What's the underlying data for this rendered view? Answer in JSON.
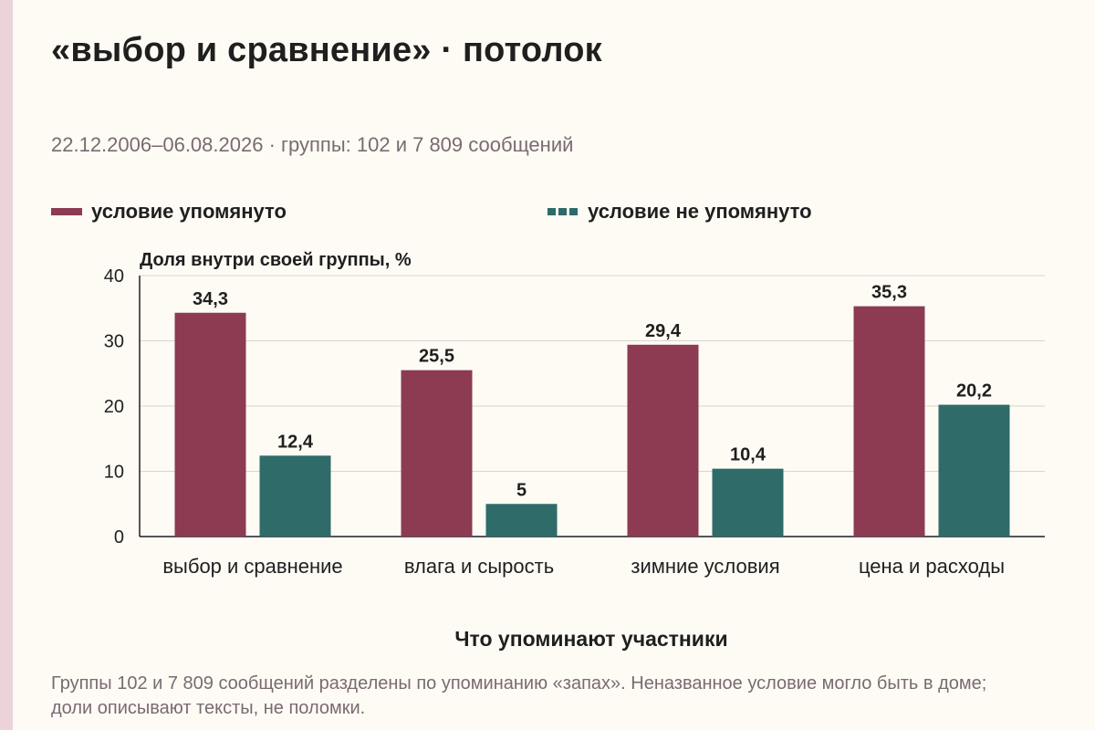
{
  "title": "«выбор и сравнение» · потолок",
  "subtitle": "22.12.2006–06.08.2026 · группы: 102 и 7 809 сообщений",
  "caption": "Группы 102 и 7 809 сообщений разделены по упоминанию «запах». Неназванное условие могло быть в доме; доли описывают тексты, не поломки.",
  "colors": {
    "mentioned": "#8c3b52",
    "not_mentioned": "#2f6b69",
    "grid": "#d9d6cf"
  },
  "chart_data": {
    "type": "bar",
    "categories": [
      "выбор и сравнение",
      "влага и сырость",
      "зимние условия",
      "цена и расходы"
    ],
    "series": [
      {
        "name": "условие упомянуто",
        "values": [
          34.3,
          25.5,
          29.4,
          35.3
        ],
        "labels": [
          "34,3",
          "25,5",
          "29,4",
          "35,3"
        ]
      },
      {
        "name": "условие не упомянуто",
        "values": [
          12.4,
          5,
          10.4,
          20.2
        ],
        "labels": [
          "12,4",
          "5",
          "10,4",
          "20,2"
        ]
      }
    ],
    "ylabel": "Доля внутри своей группы, %",
    "xlabel": "Что упоминают участники",
    "ylim": [
      0,
      40
    ],
    "yticks": [
      0,
      10,
      20,
      30,
      40
    ],
    "grid": true,
    "legend_position": "top-left"
  }
}
